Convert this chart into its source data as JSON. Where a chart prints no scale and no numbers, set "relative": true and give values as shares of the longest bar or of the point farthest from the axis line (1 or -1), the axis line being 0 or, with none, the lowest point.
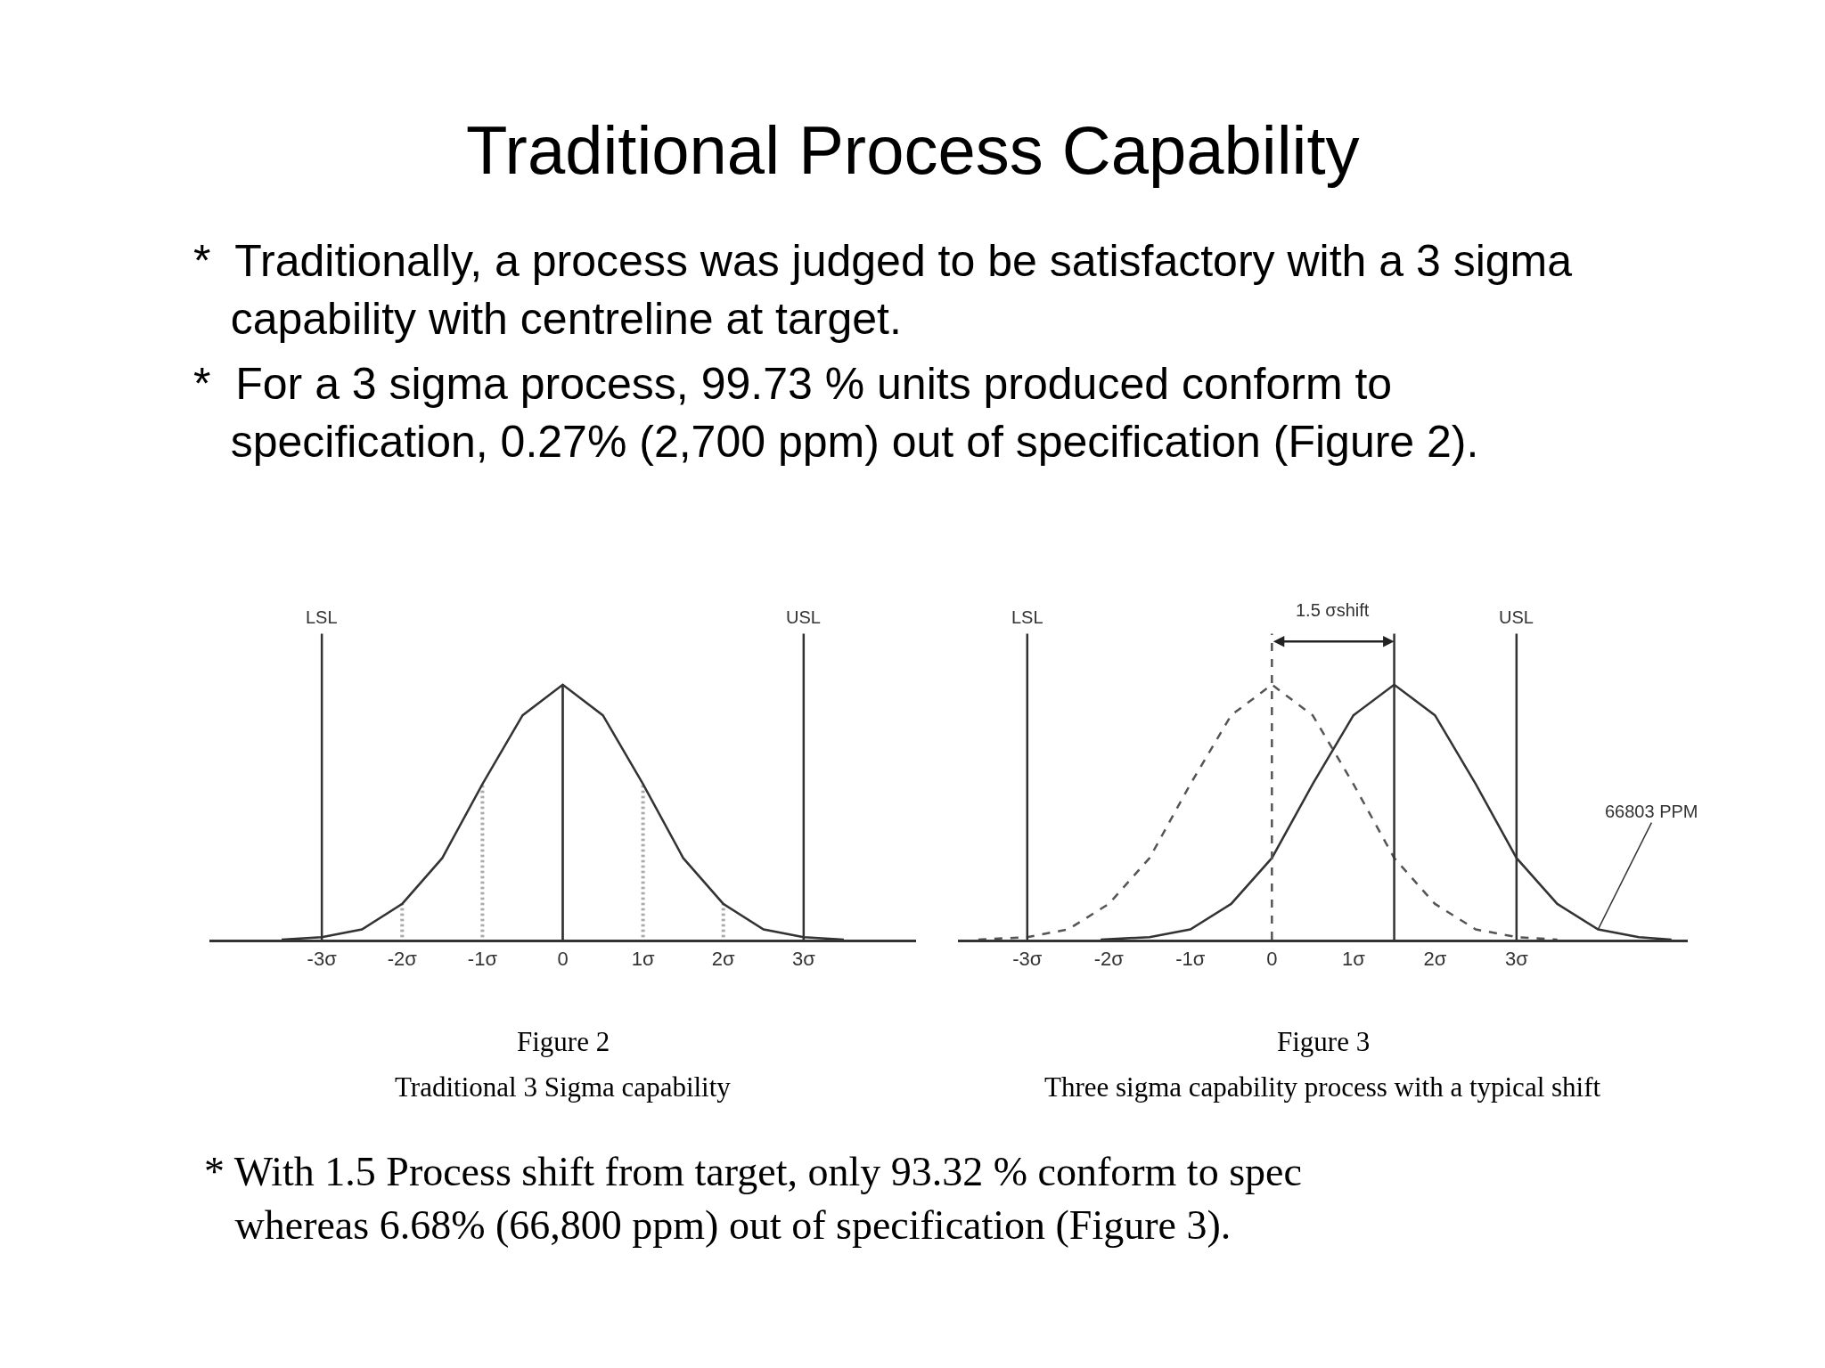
{
  "chart_data": [
    {
      "type": "other",
      "title": "Traditional Process Capability",
      "annotations": [
        "*  Traditionally, a process was judged to be satisfactory with a 3 sigma\n   capability with centreline at target.",
        "*  For a 3 sigma process, 99.73 % units produced conform to\n   specification, 0.27% (2,700 ppm) out of specification (Figure 2)."
      ]
    },
    {
      "type": "line",
      "title": "Figure 2",
      "subtitle": "Traditional 3 Sigma capability",
      "relative": true,
      "xlim": [
        -4.4,
        4.4
      ],
      "xticks": [
        {
          "value": -3,
          "label": "-3σ"
        },
        {
          "value": -2,
          "label": "-2σ"
        },
        {
          "value": -1,
          "label": "-1σ"
        },
        0,
        {
          "value": 1,
          "label": "1σ"
        },
        {
          "value": 2,
          "label": "2σ"
        },
        {
          "value": 3,
          "label": "3σ"
        }
      ],
      "marker": "none",
      "series": [
        {
          "color": "#333333",
          "line_style": "solid",
          "x": [
            -3.5,
            -3,
            -2.5,
            -2,
            -1.5,
            -1,
            -0.5,
            0,
            0.5,
            1,
            1.5,
            2,
            2.5,
            3,
            3.5
          ],
          "values": [
            0.0,
            0.01,
            0.04,
            0.14,
            0.32,
            0.61,
            0.88,
            1,
            0.88,
            0.61,
            0.32,
            0.14,
            0.04,
            0.01,
            0.0
          ]
        },
        {
          "type": "bar",
          "color": "#333333",
          "line_style": "solid",
          "x": [
            0
          ],
          "values": [
            1
          ]
        },
        {
          "type": "bar",
          "color": "#555555",
          "line_style": "dotted",
          "x": [
            -2,
            -1,
            1,
            2
          ],
          "values": [
            0.14,
            0.61,
            0.61,
            0.14
          ]
        }
      ],
      "ref_lines": [
        {
          "axis": "x",
          "value": -3,
          "label": "LSL",
          "color": "#333333"
        },
        {
          "axis": "x",
          "value": 3,
          "label": "USL",
          "color": "#333333"
        }
      ]
    },
    {
      "type": "line",
      "title": "Figure 3",
      "subtitle": "Three sigma capability process with a typical shift",
      "relative": true,
      "xlim": [
        -3.85,
        5.1
      ],
      "xticks": [
        {
          "value": -3,
          "label": "-3σ"
        },
        {
          "value": -2,
          "label": "-2σ"
        },
        {
          "value": -1,
          "label": "-1σ"
        },
        0,
        {
          "value": 1,
          "label": "1σ"
        },
        {
          "value": 2,
          "label": "2σ"
        },
        {
          "value": 3,
          "label": "3σ"
        }
      ],
      "marker": "none",
      "series": [
        {
          "color": "#555555",
          "line_style": "dashed",
          "x": [
            -3.6,
            -3,
            -2.5,
            -2,
            -1.5,
            -1,
            -0.5,
            0,
            0.5,
            1,
            1.5,
            2,
            2.5,
            3,
            3.5
          ],
          "values": [
            0.0,
            0.01,
            0.04,
            0.14,
            0.32,
            0.61,
            0.88,
            1,
            0.88,
            0.61,
            0.32,
            0.14,
            0.04,
            0.01,
            0.0
          ]
        },
        {
          "color": "#333333",
          "line_style": "solid",
          "x": [
            -2.1,
            -1.5,
            -1,
            -0.5,
            0,
            0.5,
            1,
            1.5,
            2,
            2.5,
            3,
            3.5,
            4,
            4.5,
            4.9
          ],
          "values": [
            0.0,
            0.01,
            0.04,
            0.14,
            0.32,
            0.61,
            0.88,
            1,
            0.88,
            0.61,
            0.32,
            0.14,
            0.04,
            0.01,
            0.0
          ]
        }
      ],
      "ref_lines": [
        {
          "axis": "x",
          "value": -3,
          "label": "LSL",
          "color": "#333333"
        },
        {
          "axis": "x",
          "value": 3,
          "label": "USL",
          "color": "#333333"
        },
        {
          "axis": "x",
          "value": 0,
          "line_style": "dashed",
          "color": "#555555"
        },
        {
          "axis": "x",
          "value": 1.5,
          "color": "#333333"
        }
      ],
      "annotations": [
        "1.5 σshift",
        "66803 PPM"
      ]
    },
    {
      "type": "other",
      "annotations": [
        "* With 1.5 Process shift from target, only 93.32 % conform to spec\n   whereas 6.68% (66,800 ppm) out of specification (Figure 3)."
      ]
    }
  ]
}
